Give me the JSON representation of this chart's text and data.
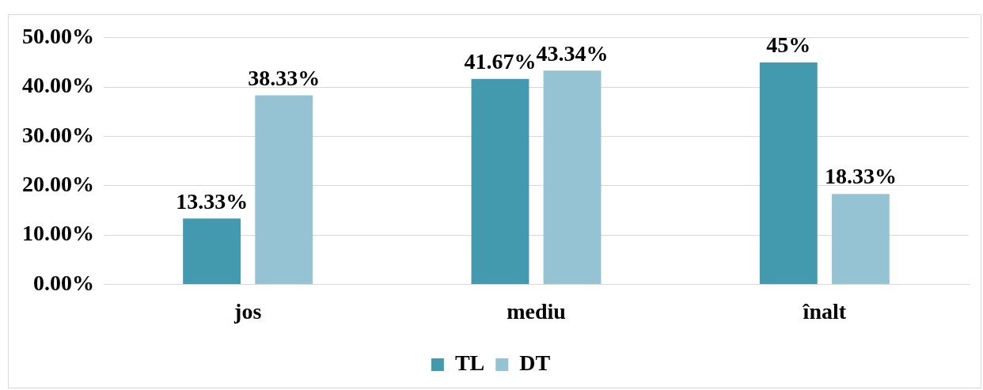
{
  "chart_data": {
    "type": "bar",
    "categories": [
      "jos",
      "mediu",
      "înalt"
    ],
    "series": [
      {
        "name": "TL",
        "color": "#4399ae",
        "values": [
          13.33,
          41.67,
          45
        ],
        "value_labels": [
          "13.33%",
          "41.67%",
          "45%"
        ]
      },
      {
        "name": "DT",
        "color": "#95c3d3",
        "values": [
          38.33,
          43.34,
          18.33
        ],
        "value_labels": [
          "38.33%",
          "43.34%",
          "18.33%"
        ]
      }
    ],
    "ylim": [
      0,
      50
    ],
    "yticks": [
      {
        "value": 0,
        "label": "0.00%"
      },
      {
        "value": 10,
        "label": "10.00%"
      },
      {
        "value": 20,
        "label": "20.00%"
      },
      {
        "value": 30,
        "label": "30.00%"
      },
      {
        "value": 40,
        "label": "40.00%"
      },
      {
        "value": 50,
        "label": "50.00%"
      }
    ],
    "grid": "y",
    "legend": "bottom"
  }
}
